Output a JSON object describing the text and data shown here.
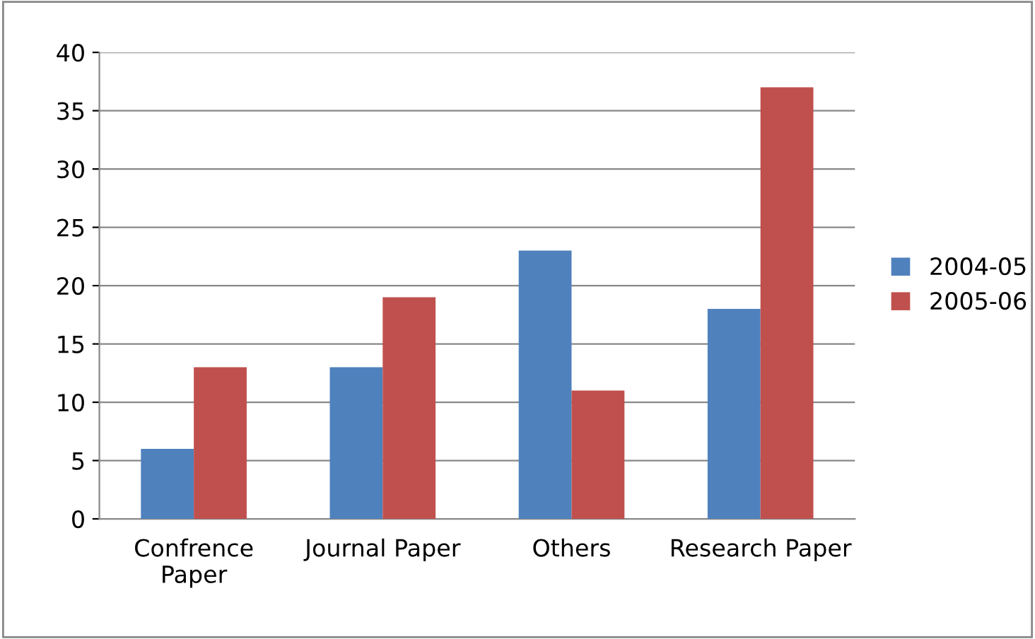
{
  "chart_data": {
    "type": "bar",
    "categories": [
      "Confrence\nPaper",
      "Journal Paper",
      "Others",
      "Research Paper"
    ],
    "series": [
      {
        "name": "2004-05",
        "color": "#4f81bd",
        "values": [
          6,
          13,
          23,
          18
        ]
      },
      {
        "name": "2005-06",
        "color": "#c0504d",
        "values": [
          13,
          19,
          11,
          37
        ]
      }
    ],
    "ylim": [
      0,
      40
    ],
    "yticks": [
      0,
      5,
      10,
      15,
      20,
      25,
      30,
      35,
      40
    ],
    "grid": "y",
    "legend": "right"
  }
}
